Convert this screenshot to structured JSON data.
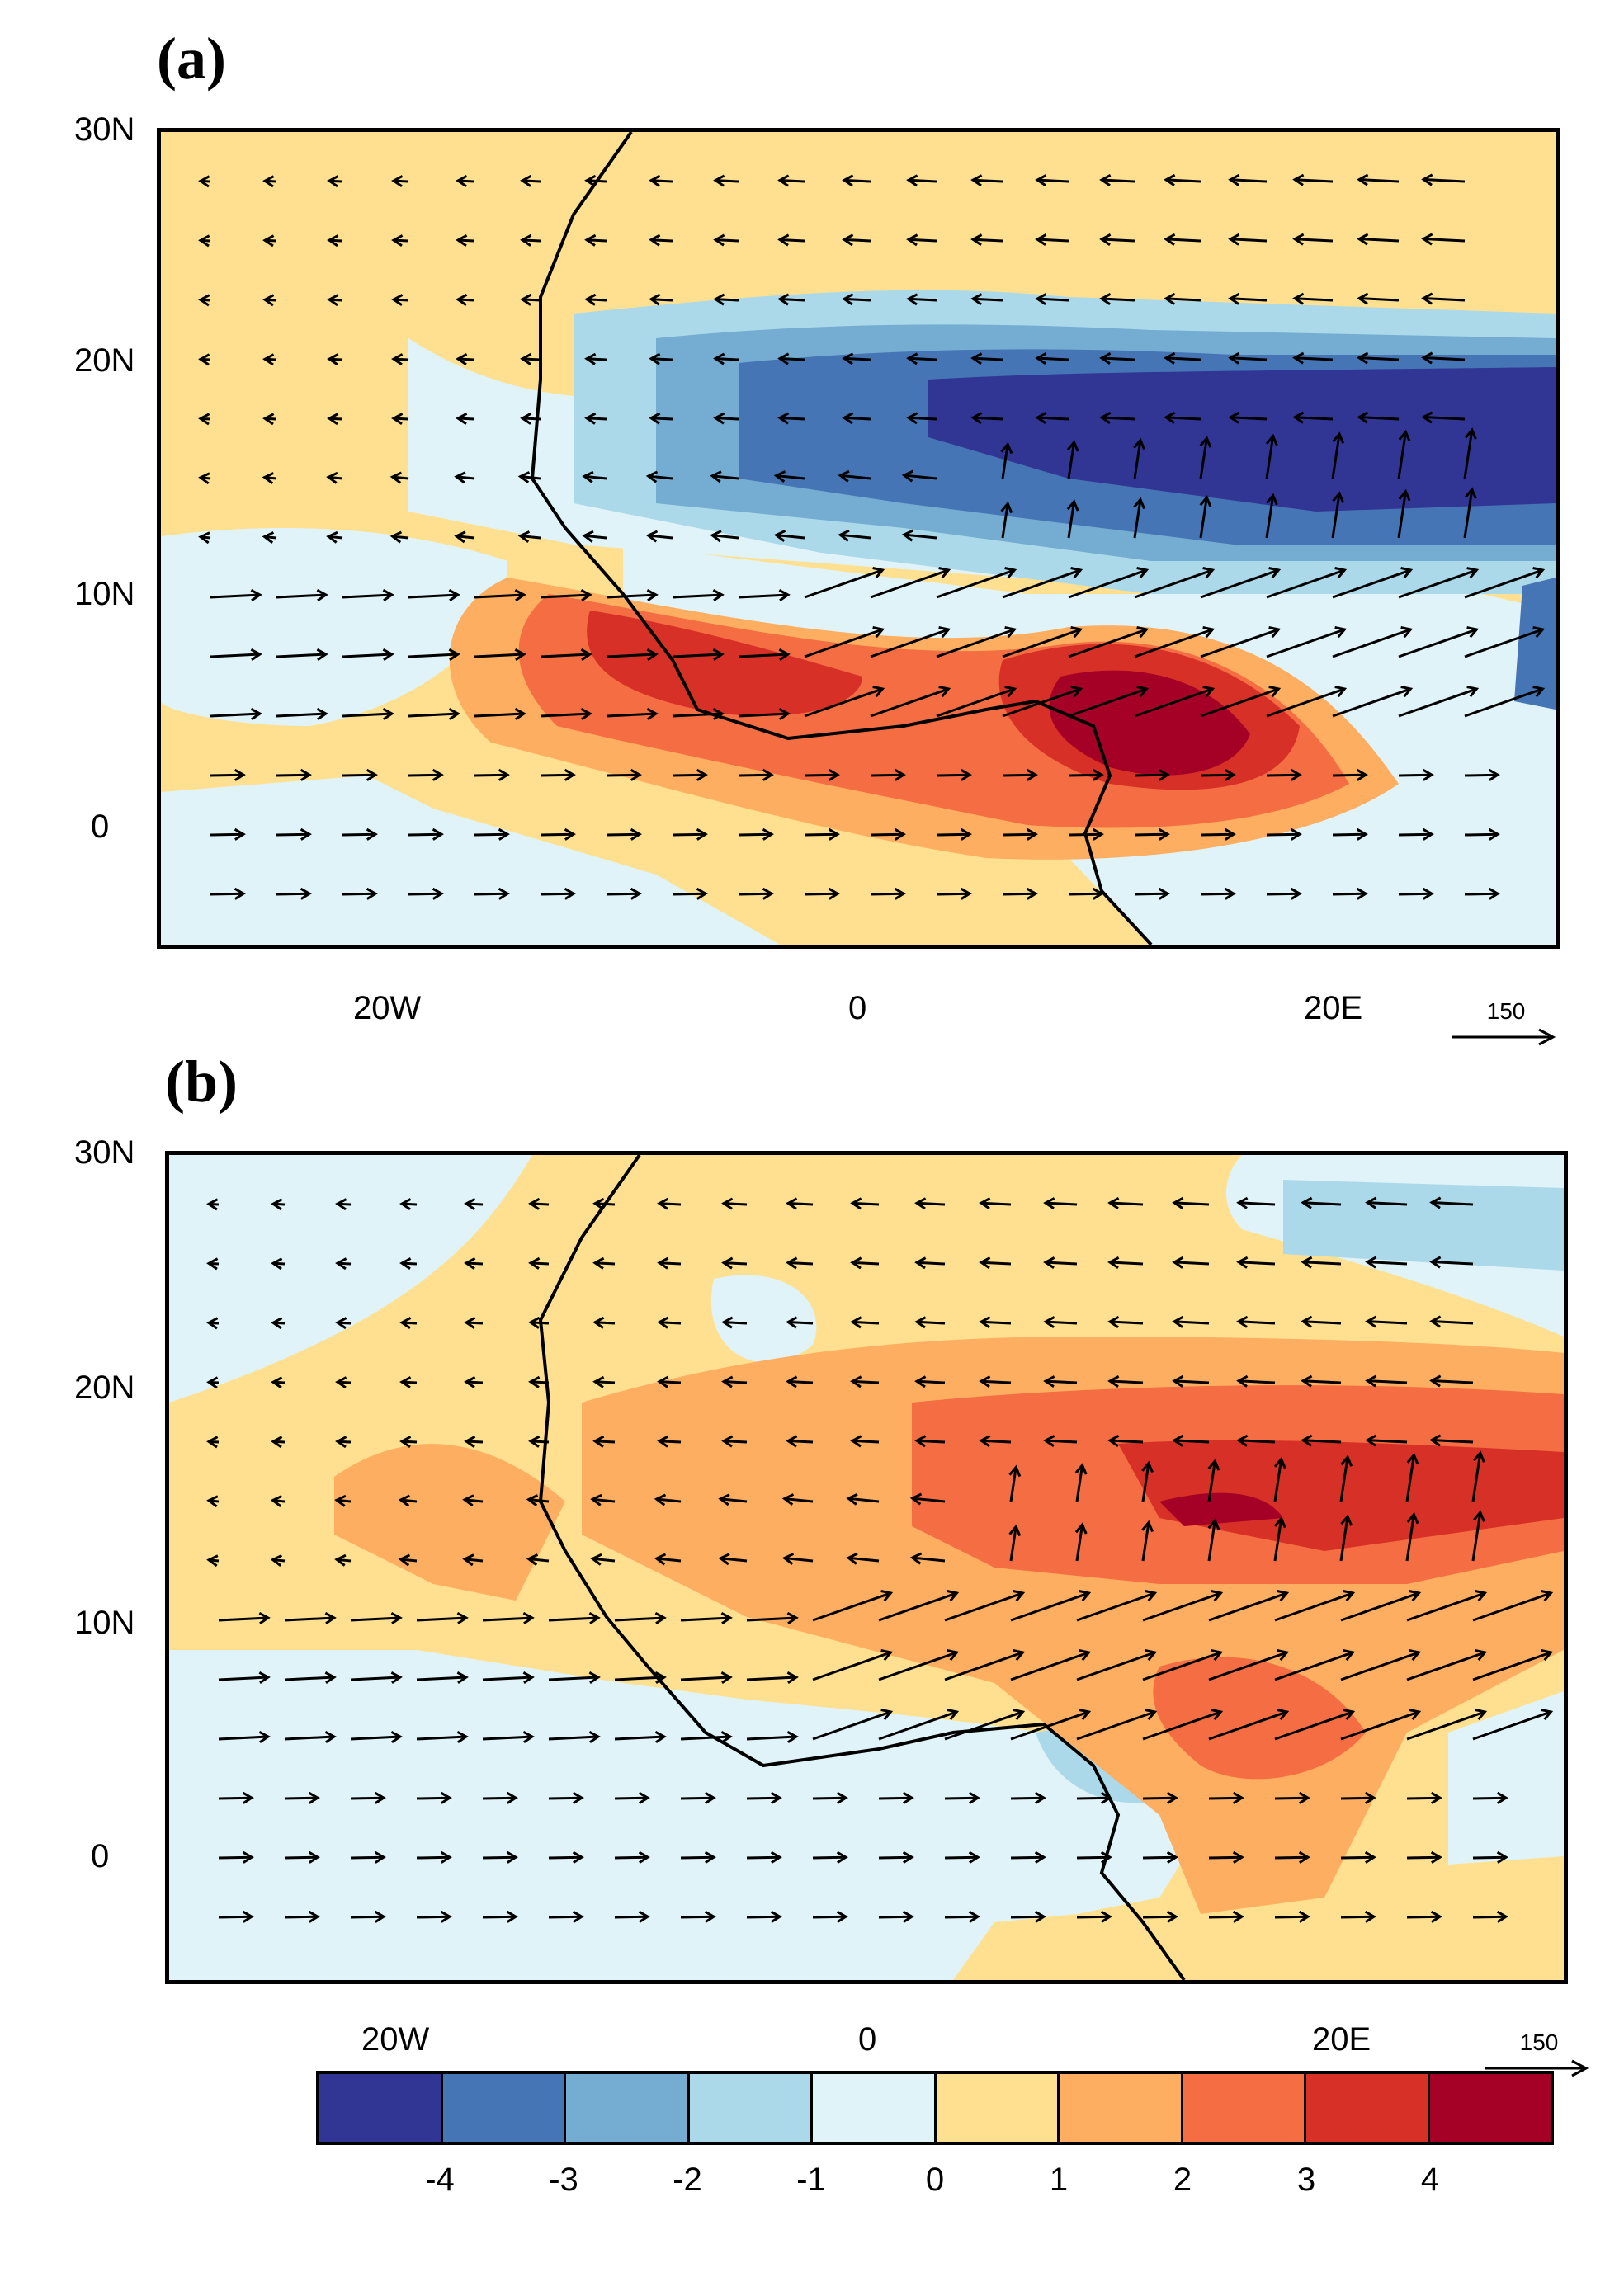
{
  "panels": [
    {
      "label": "(a)",
      "ref_value": "150"
    },
    {
      "label": "(b)",
      "ref_value": "150"
    }
  ],
  "axes": {
    "y_ticks": [
      "30N",
      "20N",
      "10N",
      "0"
    ],
    "x_ticks": [
      "20W",
      "0",
      "20E"
    ]
  },
  "colorbar": {
    "labels": [
      "-4",
      "-3",
      "-2",
      "-1",
      "0",
      "1",
      "2",
      "3",
      "4"
    ],
    "colors": [
      "#313695",
      "#4575b4",
      "#74add1",
      "#abd9e9",
      "#e0f3f8",
      "#fee090",
      "#fdae61",
      "#f46d43",
      "#d73027",
      "#a50026"
    ]
  }
}
